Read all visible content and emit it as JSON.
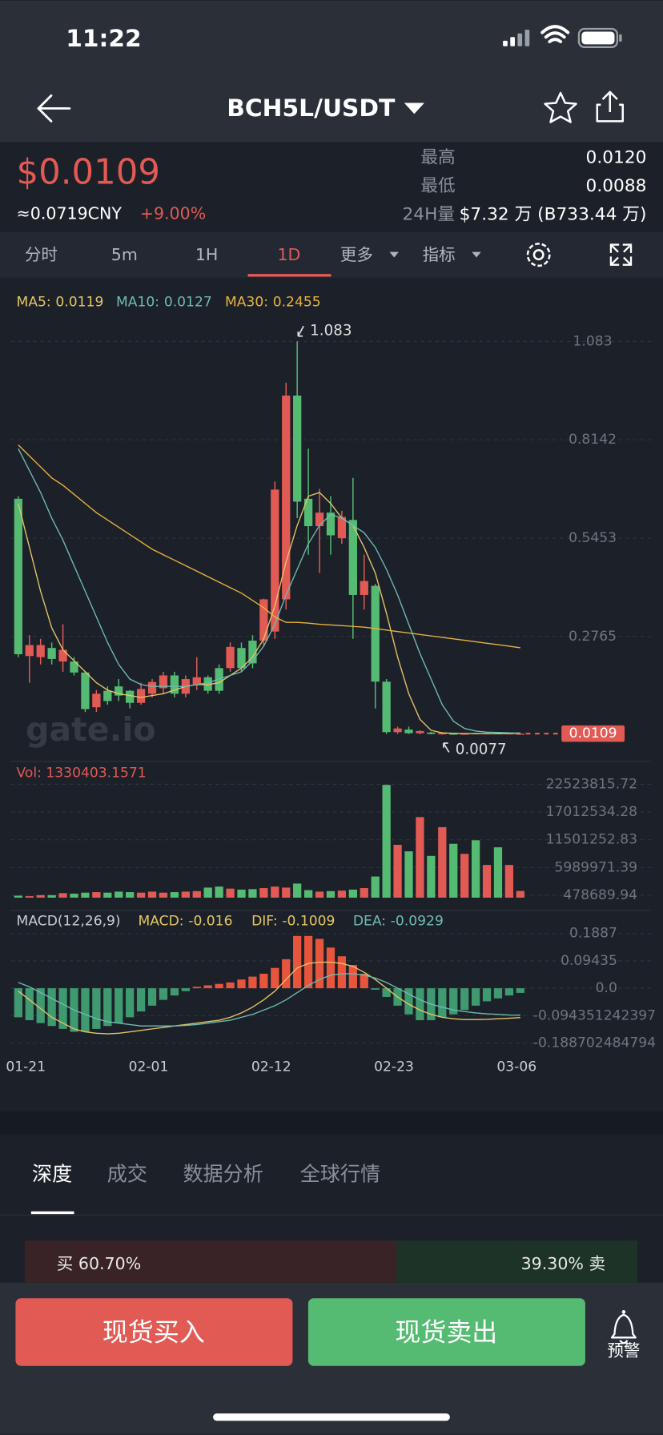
{
  "status_bar": {
    "time": "11:22"
  },
  "header": {
    "title": "BCH5L/USDT"
  },
  "ticker": {
    "price": "$0.0109",
    "cny": "≈0.0719CNY",
    "change": "+9.00%",
    "high_label": "最高",
    "high": "0.0120",
    "low_label": "最低",
    "low": "0.0088",
    "vol_label": "24H量",
    "vol": "$7.32 万 (B733.44 万)"
  },
  "tabs": {
    "items": [
      "分时",
      "5m",
      "1H",
      "1D",
      "更多",
      "指标"
    ],
    "active": 3
  },
  "kline": {
    "up_color": "#e25a54",
    "down_color": "#55bb72",
    "categories": [
      null,
      "01-21",
      null,
      null,
      null,
      null,
      null,
      null,
      null,
      null,
      null,
      null,
      "02-01",
      null,
      null,
      null,
      null,
      null,
      null,
      null,
      null,
      null,
      null,
      "02-12",
      null,
      null,
      null,
      null,
      null,
      null,
      null,
      null,
      null,
      null,
      "02-23",
      null,
      null,
      null,
      null,
      null,
      null,
      null,
      null,
      null,
      null,
      "03-06"
    ],
    "open": [
      0.653,
      0.223,
      0.22,
      0.245,
      0.208,
      0.208,
      0.178,
      0.083,
      0.128,
      0.14,
      0.128,
      0.095,
      0.12,
      0.135,
      0.17,
      0.12,
      0.145,
      0.165,
      0.19,
      0.19,
      0.245,
      0.265,
      0.265,
      0.29,
      0.378,
      0.935,
      0.653,
      0.578,
      0.615,
      0.545,
      0.595,
      0.39,
      0.415,
      0.153,
      0.015,
      0.022,
      0.012,
      0.014,
      0.009,
      0.011,
      0.01,
      0.012,
      0.011,
      0.012,
      0.01,
      0.01
    ],
    "high": [
      0.66,
      0.28,
      0.27,
      0.26,
      0.31,
      0.22,
      0.18,
      0.13,
      0.14,
      0.16,
      0.13,
      0.15,
      0.16,
      0.18,
      0.18,
      0.17,
      0.22,
      0.17,
      0.2,
      0.26,
      0.26,
      0.28,
      0.38,
      0.7,
      0.97,
      1.083,
      0.79,
      0.68,
      0.66,
      0.62,
      0.71,
      0.5,
      0.42,
      0.16,
      0.03,
      0.03,
      0.02,
      0.016,
      0.015,
      0.012,
      0.013,
      0.013,
      0.013,
      0.013,
      0.012,
      0.012
    ],
    "low": [
      0.22,
      0.15,
      0.2,
      0.2,
      0.18,
      0.17,
      0.07,
      0.07,
      0.09,
      0.1,
      0.08,
      0.09,
      0.11,
      0.12,
      0.11,
      0.11,
      0.13,
      0.12,
      0.12,
      0.18,
      0.18,
      0.19,
      0.25,
      0.27,
      0.35,
      0.6,
      0.5,
      0.45,
      0.5,
      0.53,
      0.27,
      0.35,
      0.08,
      0.01,
      0.01,
      0.01,
      0.009,
      0.009,
      0.0077,
      0.008,
      0.009,
      0.009,
      0.01,
      0.01,
      0.009,
      0.0095
    ],
    "close": [
      0.228,
      0.253,
      0.253,
      0.215,
      0.24,
      0.178,
      0.078,
      0.12,
      0.1,
      0.115,
      0.095,
      0.133,
      0.152,
      0.17,
      0.12,
      0.16,
      0.165,
      0.128,
      0.128,
      0.248,
      0.19,
      0.203,
      0.378,
      0.678,
      0.935,
      0.645,
      0.578,
      0.615,
      0.553,
      0.603,
      0.39,
      0.428,
      0.153,
      0.015,
      0.025,
      0.012,
      0.018,
      0.01,
      0.013,
      0.009,
      0.011,
      0.01,
      0.012,
      0.011,
      0.012,
      0.0109
    ],
    "ma": [
      {
        "label": "MA5:",
        "value": 0.0119,
        "color": "#e3c566",
        "values": [
          0.64,
          0.52,
          0.4,
          0.3,
          0.24,
          0.21,
          0.18,
          0.15,
          0.13,
          0.12,
          0.115,
          0.11,
          0.115,
          0.12,
          0.13,
          0.14,
          0.145,
          0.145,
          0.15,
          0.17,
          0.19,
          0.22,
          0.27,
          0.36,
          0.48,
          0.58,
          0.66,
          0.67,
          0.64,
          0.6,
          0.58,
          0.52,
          0.45,
          0.34,
          0.22,
          0.12,
          0.05,
          0.02,
          0.013,
          0.012,
          0.011,
          0.011,
          0.011,
          0.011,
          0.011,
          0.0119
        ]
      },
      {
        "label": "MA10:",
        "value": 0.0127,
        "color": "#6dbbb0",
        "values": [
          0.79,
          0.73,
          0.67,
          0.6,
          0.54,
          0.47,
          0.4,
          0.33,
          0.26,
          0.2,
          0.16,
          0.145,
          0.14,
          0.14,
          0.14,
          0.14,
          0.145,
          0.15,
          0.16,
          0.17,
          0.18,
          0.21,
          0.25,
          0.31,
          0.39,
          0.46,
          0.53,
          0.58,
          0.61,
          0.6,
          0.58,
          0.56,
          0.52,
          0.46,
          0.39,
          0.31,
          0.23,
          0.16,
          0.09,
          0.045,
          0.025,
          0.018,
          0.015,
          0.014,
          0.013,
          0.0127
        ]
      },
      {
        "label": "MA30:",
        "value": 0.2455,
        "color": "#e8b23e",
        "values": [
          0.8,
          0.77,
          0.74,
          0.71,
          0.69,
          0.665,
          0.64,
          0.615,
          0.595,
          0.575,
          0.555,
          0.535,
          0.515,
          0.5,
          0.485,
          0.47,
          0.455,
          0.44,
          0.425,
          0.41,
          0.395,
          0.375,
          0.355,
          0.33,
          0.315,
          0.315,
          0.313,
          0.31,
          0.308,
          0.306,
          0.304,
          0.302,
          0.298,
          0.294,
          0.29,
          0.286,
          0.282,
          0.278,
          0.274,
          0.27,
          0.266,
          0.262,
          0.258,
          0.254,
          0.25,
          0.2455
        ]
      }
    ],
    "ylim": [
      -0.06,
      1.14
    ],
    "yticks": [
      1.083,
      0.8142,
      0.5453,
      0.2765
    ],
    "max_marker": 1.083,
    "min_marker": 0.0077,
    "last_price": 0.0109,
    "watermark": "gate.io"
  },
  "volume": {
    "label": "Vol:",
    "value": 1330403.1571,
    "color": "#e25a54",
    "values": [
      400000,
      300000,
      500000,
      500000,
      900000,
      800000,
      1000000,
      1100000,
      1000000,
      1200000,
      1100000,
      1000000,
      1200000,
      1000000,
      1100000,
      1200000,
      1300000,
      2000000,
      2200000,
      1800000,
      1600000,
      1700000,
      1900000,
      2200000,
      2000000,
      2800000,
      1500000,
      1200000,
      1300000,
      1400000,
      1600000,
      1900000,
      4200000,
      22400000,
      10500000,
      9200000,
      16000000,
      8300000,
      14000000,
      10700000,
      8700000,
      11400000,
      6500000,
      10000000,
      6500000,
      1330403.1571
    ],
    "ylim": [
      0,
      22523815.72
    ],
    "yticks": [
      22523815.72,
      17012534.28,
      11501252.83,
      5989971.39,
      478689.94
    ]
  },
  "macd": {
    "title": "MACD(12,26,9)",
    "legend": [
      {
        "label": "MACD:",
        "value": -0.016,
        "color": "#e3c566"
      },
      {
        "label": "DIF:",
        "value": -0.1009,
        "color": "#e3c566"
      },
      {
        "label": "DEA:",
        "value": -0.0929,
        "color": "#6dbbb0"
      }
    ],
    "pos_color": "#e8553d",
    "neg_color": "#3f9a70",
    "hist": [
      -0.1,
      -0.11,
      -0.12,
      -0.13,
      -0.14,
      -0.15,
      -0.15,
      -0.14,
      -0.13,
      -0.12,
      -0.1,
      -0.08,
      -0.06,
      -0.04,
      -0.025,
      -0.01,
      0.005,
      0.01,
      0.015,
      0.02,
      0.03,
      0.04,
      0.05,
      0.07,
      0.1,
      0.18,
      0.18,
      0.17,
      0.14,
      0.11,
      0.08,
      0.05,
      -0.005,
      -0.03,
      -0.06,
      -0.09,
      -0.11,
      -0.11,
      -0.1,
      -0.09,
      -0.075,
      -0.06,
      -0.045,
      -0.035,
      -0.025,
      -0.016
    ],
    "dif": [
      -0.01,
      -0.04,
      -0.07,
      -0.1,
      -0.12,
      -0.14,
      -0.15,
      -0.155,
      -0.157,
      -0.155,
      -0.15,
      -0.145,
      -0.14,
      -0.135,
      -0.13,
      -0.125,
      -0.12,
      -0.115,
      -0.11,
      -0.1,
      -0.085,
      -0.065,
      -0.04,
      -0.01,
      0.03,
      0.07,
      0.085,
      0.09,
      0.09,
      0.085,
      0.075,
      0.055,
      0.03,
      0.0,
      -0.03,
      -0.055,
      -0.075,
      -0.09,
      -0.1,
      -0.105,
      -0.108,
      -0.108,
      -0.107,
      -0.105,
      -0.103,
      -0.1009
    ],
    "dea": [
      0.02,
      0.005,
      -0.015,
      -0.035,
      -0.055,
      -0.075,
      -0.09,
      -0.105,
      -0.115,
      -0.12,
      -0.125,
      -0.13,
      -0.13,
      -0.13,
      -0.13,
      -0.128,
      -0.125,
      -0.12,
      -0.115,
      -0.11,
      -0.1,
      -0.09,
      -0.075,
      -0.06,
      -0.04,
      -0.015,
      0.01,
      0.03,
      0.045,
      0.05,
      0.05,
      0.045,
      0.035,
      0.02,
      0.0,
      -0.02,
      -0.04,
      -0.055,
      -0.065,
      -0.075,
      -0.08,
      -0.085,
      -0.088,
      -0.09,
      -0.092,
      -0.0929
    ],
    "ylim": [
      -0.236,
      0.252
    ],
    "yticks": [
      0.1887,
      0.09435,
      {
        "value": 0,
        "label": "0.0"
      },
      -0.094351242397,
      -0.188702484794
    ]
  },
  "bottom_tabs": {
    "items": [
      "深度",
      "成交",
      "数据分析",
      "全球行情"
    ],
    "active": 0
  },
  "depth_ratio": {
    "buy": 60.7,
    "sell": 39.3,
    "buy_label": "买 60.70%",
    "sell_label": "39.30% 卖"
  },
  "actions": {
    "buy": "现货买入",
    "sell": "现货卖出",
    "alert": "预警"
  }
}
